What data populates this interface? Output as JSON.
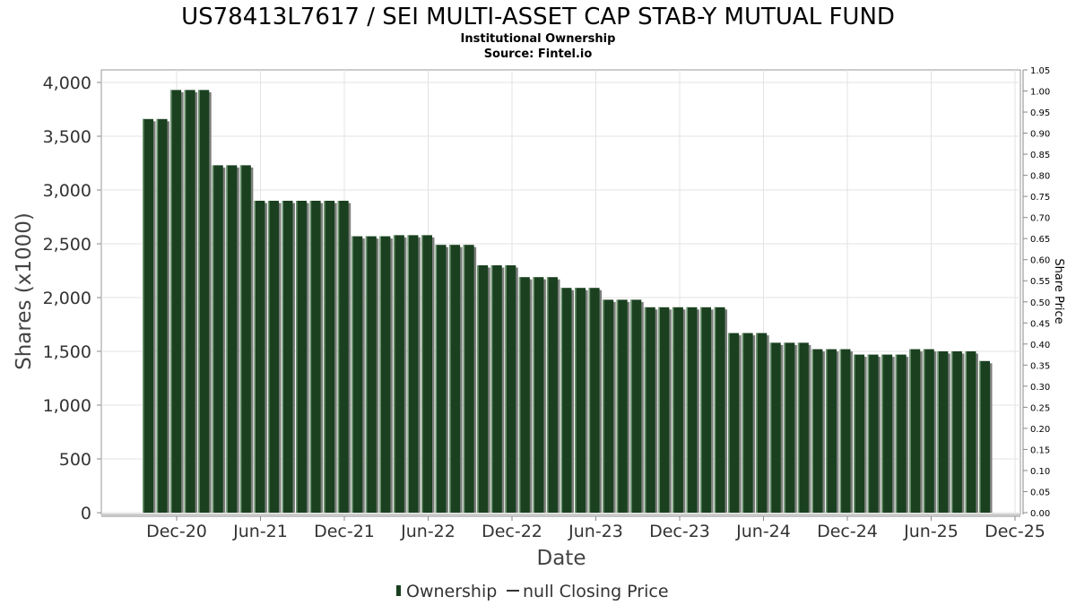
{
  "chart_data": {
    "type": "bar",
    "title": "US78413L7617 / SEI MULTI-ASSET CAP STAB-Y MUTUAL FUND",
    "subtitle_lines": [
      "Institutional Ownership",
      "Source: Fintel.io"
    ],
    "xlabel": "Date",
    "ylabel": "Shares (x1000)",
    "y2label": "Share Price",
    "ylim": [
      0,
      4000
    ],
    "y2lim": [
      0,
      1.05
    ],
    "yticks": [
      "0",
      "500",
      "1,000",
      "1,500",
      "2,000",
      "2,500",
      "3,000",
      "3,500",
      "4,000"
    ],
    "y2ticks": [
      "0.00",
      "0.05",
      "0.10",
      "0.15",
      "0.20",
      "0.25",
      "0.30",
      "0.35",
      "0.40",
      "0.45",
      "0.50",
      "0.55",
      "0.60",
      "0.65",
      "0.70",
      "0.75",
      "0.80",
      "0.85",
      "0.90",
      "0.95",
      "1.00",
      "1.05"
    ],
    "xticks": [
      "Dec-20",
      "Jun-21",
      "Dec-21",
      "Jun-22",
      "Dec-22",
      "Jun-23",
      "Dec-23",
      "Jun-24",
      "Dec-24",
      "Jun-25",
      "Dec-25"
    ],
    "series": [
      {
        "name": "Ownership",
        "color": "#1a4020",
        "values": [
          3660,
          3660,
          3930,
          3930,
          3930,
          3230,
          3230,
          3230,
          2900,
          2900,
          2900,
          2900,
          2900,
          2900,
          2900,
          2570,
          2570,
          2570,
          2580,
          2580,
          2580,
          2490,
          2490,
          2490,
          2300,
          2300,
          2300,
          2190,
          2190,
          2190,
          2090,
          2090,
          2090,
          1980,
          1980,
          1980,
          1910,
          1910,
          1910,
          1910,
          1910,
          1910,
          1670,
          1670,
          1670,
          1580,
          1580,
          1580,
          1520,
          1520,
          1520,
          1470,
          1470,
          1470,
          1470,
          1520,
          1520,
          1500,
          1500,
          1500,
          1410
        ]
      }
    ],
    "legend": {
      "placement": "bottom-center",
      "items": [
        {
          "label": "Ownership",
          "icon": "bar-swatch-icon",
          "color": "#1a4020"
        },
        {
          "label": "null Closing Price",
          "icon": "line-swatch-icon",
          "color": "#333333"
        }
      ]
    },
    "grid": true
  }
}
